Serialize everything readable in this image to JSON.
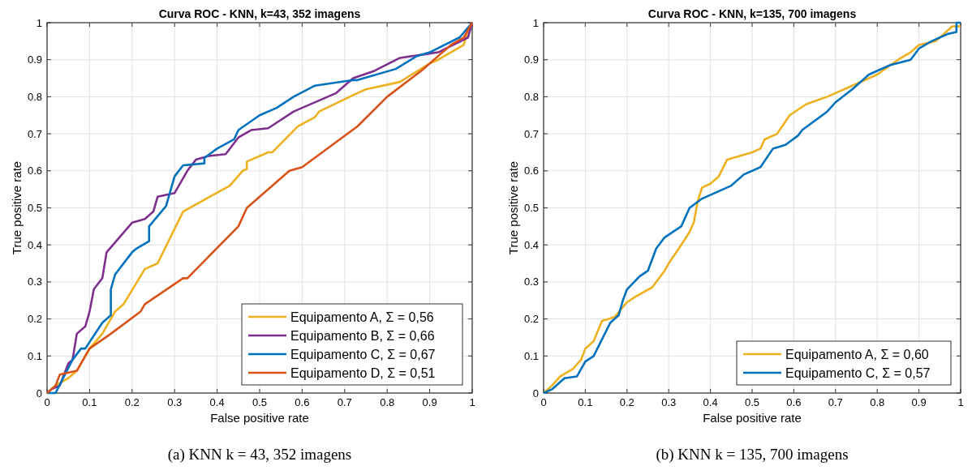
{
  "chart_data": [
    {
      "type": "line",
      "title": "Curva ROC - KNN, k=43, 352 imagens",
      "xlabel": "False positive rate",
      "ylabel": "True positive rate",
      "annotations": [
        "(a) KNN k = 43, 352 imagens"
      ],
      "xlim": [
        0,
        1
      ],
      "ylim": [
        0,
        1
      ],
      "xticks": [
        0,
        0.1,
        0.2,
        0.3,
        0.4,
        0.5,
        0.6,
        0.7,
        0.8,
        0.9,
        1
      ],
      "yticks": [
        0,
        0.1,
        0.2,
        0.3,
        0.4,
        0.5,
        0.6,
        0.7,
        0.8,
        0.9,
        1
      ],
      "grid": true,
      "legend": "bottom right",
      "line_style": "solid",
      "marker": "none",
      "series": [
        {
          "name": "Equipamento A, Σ = 0,56",
          "color": "#edb120",
          "x": [
            0,
            0.02,
            0.05,
            0.07,
            0.1,
            0.13,
            0.16,
            0.18,
            0.23,
            0.26,
            0.32,
            0.43,
            0.46,
            0.47,
            0.47,
            0.52,
            0.53,
            0.59,
            0.63,
            0.64,
            0.73,
            0.75,
            0.83,
            0.9,
            0.92,
            0.98,
            0.99,
            1
          ],
          "values": [
            0,
            0.02,
            0.04,
            0.06,
            0.12,
            0.16,
            0.22,
            0.24,
            0.335,
            0.35,
            0.49,
            0.56,
            0.6,
            0.605,
            0.625,
            0.65,
            0.65,
            0.72,
            0.745,
            0.76,
            0.81,
            0.82,
            0.84,
            0.89,
            0.9,
            0.94,
            0.98,
            1
          ]
        },
        {
          "name": "Equipamento B, Σ = 0,66",
          "color": "#7e2f8e",
          "x": [
            0,
            0.01,
            0.03,
            0.04,
            0.05,
            0.06,
            0.07,
            0.09,
            0.1,
            0.11,
            0.13,
            0.14,
            0.2,
            0.23,
            0.25,
            0.26,
            0.3,
            0.33,
            0.35,
            0.38,
            0.42,
            0.45,
            0.48,
            0.52,
            0.58,
            0.68,
            0.72,
            0.77,
            0.83,
            0.89,
            0.92,
            0.99,
            1
          ],
          "values": [
            0,
            0.01,
            0.02,
            0.05,
            0.08,
            0.09,
            0.16,
            0.18,
            0.22,
            0.28,
            0.31,
            0.38,
            0.46,
            0.47,
            0.49,
            0.53,
            0.54,
            0.6,
            0.63,
            0.64,
            0.645,
            0.69,
            0.71,
            0.715,
            0.76,
            0.81,
            0.85,
            0.87,
            0.905,
            0.915,
            0.92,
            0.96,
            1
          ]
        },
        {
          "name": "Equipamento C, Σ = 0,67",
          "color": "#0072bd",
          "x": [
            0,
            0.02,
            0.06,
            0.08,
            0.09,
            0.13,
            0.15,
            0.15,
            0.16,
            0.2,
            0.21,
            0.24,
            0.24,
            0.28,
            0.3,
            0.32,
            0.37,
            0.37,
            0.4,
            0.44,
            0.45,
            0.5,
            0.54,
            0.58,
            0.63,
            0.72,
            0.73,
            0.82,
            0.87,
            0.9,
            0.97,
            1
          ],
          "values": [
            0,
            0,
            0.09,
            0.12,
            0.12,
            0.19,
            0.21,
            0.28,
            0.32,
            0.38,
            0.39,
            0.41,
            0.45,
            0.505,
            0.585,
            0.615,
            0.62,
            0.635,
            0.66,
            0.685,
            0.71,
            0.75,
            0.77,
            0.8,
            0.83,
            0.845,
            0.845,
            0.875,
            0.91,
            0.92,
            0.96,
            1
          ]
        },
        {
          "name": "Equipamento D, Σ = 0,51",
          "color": "#d95319",
          "x": [
            0,
            0.02,
            0.03,
            0.07,
            0.1,
            0.15,
            0.22,
            0.23,
            0.32,
            0.33,
            0.45,
            0.47,
            0.57,
            0.6,
            0.73,
            0.8,
            0.88,
            0.92,
            0.95,
            0.98,
            1
          ],
          "values": [
            0,
            0.02,
            0.05,
            0.06,
            0.12,
            0.16,
            0.22,
            0.24,
            0.31,
            0.31,
            0.45,
            0.5,
            0.6,
            0.61,
            0.72,
            0.8,
            0.87,
            0.91,
            0.94,
            0.96,
            1
          ]
        }
      ]
    },
    {
      "type": "line",
      "title": "Curva ROC - KNN, k=135, 700 imagens",
      "xlabel": "False positive rate",
      "ylabel": "True positive rate",
      "annotations": [
        "(b) KNN k = 135, 700 imagens"
      ],
      "xlim": [
        0,
        1
      ],
      "ylim": [
        0,
        1
      ],
      "xticks": [
        0,
        0.1,
        0.2,
        0.3,
        0.4,
        0.5,
        0.6,
        0.7,
        0.8,
        0.9,
        1
      ],
      "yticks": [
        0,
        0.1,
        0.2,
        0.3,
        0.4,
        0.5,
        0.6,
        0.7,
        0.8,
        0.9,
        1
      ],
      "grid": true,
      "legend": "bottom right",
      "line_style": "solid",
      "marker": "none",
      "series": [
        {
          "name": "Equipamento A, Σ = 0,60",
          "color": "#edb120",
          "x": [
            0,
            0.02,
            0.04,
            0.07,
            0.09,
            0.1,
            0.12,
            0.14,
            0.17,
            0.2,
            0.22,
            0.26,
            0.29,
            0.3,
            0.33,
            0.35,
            0.36,
            0.37,
            0.38,
            0.4,
            0.42,
            0.44,
            0.47,
            0.5,
            0.52,
            0.53,
            0.56,
            0.59,
            0.63,
            0.68,
            0.7,
            0.74,
            0.8,
            0.85,
            0.88,
            0.9,
            0.94,
            0.98,
            1
          ],
          "values": [
            0,
            0.02,
            0.045,
            0.065,
            0.09,
            0.12,
            0.14,
            0.195,
            0.205,
            0.245,
            0.26,
            0.285,
            0.33,
            0.35,
            0.4,
            0.435,
            0.46,
            0.52,
            0.555,
            0.565,
            0.585,
            0.63,
            0.64,
            0.65,
            0.66,
            0.685,
            0.7,
            0.75,
            0.78,
            0.8,
            0.81,
            0.83,
            0.86,
            0.9,
            0.92,
            0.94,
            0.95,
            0.99,
            0.99
          ]
        },
        {
          "name": "Equipamento C, Σ = 0,57",
          "color": "#0072bd",
          "x": [
            0,
            0.02,
            0.05,
            0.08,
            0.1,
            0.12,
            0.16,
            0.18,
            0.19,
            0.2,
            0.23,
            0.25,
            0.27,
            0.29,
            0.31,
            0.33,
            0.35,
            0.38,
            0.45,
            0.48,
            0.52,
            0.55,
            0.58,
            0.61,
            0.62,
            0.68,
            0.7,
            0.74,
            0.78,
            0.83,
            0.88,
            0.9,
            0.93,
            0.97,
            0.99,
            0.99,
            1
          ],
          "values": [
            0,
            0.01,
            0.04,
            0.045,
            0.085,
            0.1,
            0.19,
            0.21,
            0.25,
            0.28,
            0.315,
            0.33,
            0.39,
            0.42,
            0.435,
            0.45,
            0.5,
            0.525,
            0.56,
            0.59,
            0.61,
            0.66,
            0.67,
            0.695,
            0.71,
            0.76,
            0.785,
            0.82,
            0.86,
            0.885,
            0.9,
            0.93,
            0.95,
            0.97,
            0.975,
            1,
            1
          ]
        }
      ]
    }
  ]
}
